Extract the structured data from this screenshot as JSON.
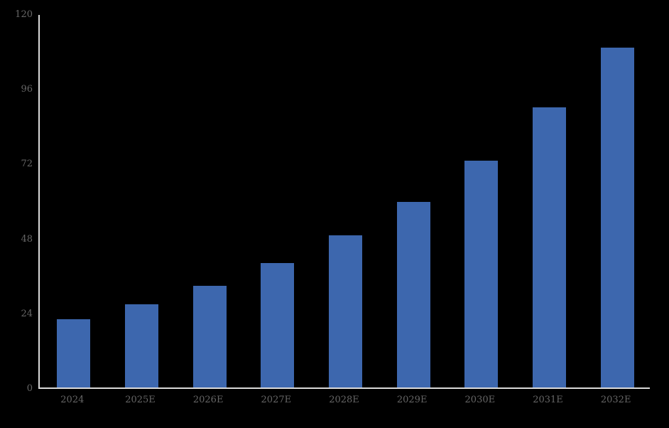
{
  "chart_data": {
    "type": "bar",
    "categories": [
      "2024",
      "2025E",
      "2026E",
      "2027E",
      "2028E",
      "2029E",
      "2030E",
      "2031E",
      "2032E"
    ],
    "values": [
      22,
      26.8,
      32.6,
      39.9,
      48.8,
      59.5,
      72.7,
      89.8,
      109
    ],
    "title": "",
    "xlabel": "",
    "ylabel": "",
    "ylim": [
      0,
      120
    ],
    "yticks": [
      0,
      24,
      48,
      72,
      96,
      120
    ],
    "grid": false,
    "legend": "none",
    "colors": {
      "bar_fill": "#3D67AE",
      "background": "#000000",
      "axis_line": "#D9D9D9",
      "tick_label": "#666666"
    }
  }
}
